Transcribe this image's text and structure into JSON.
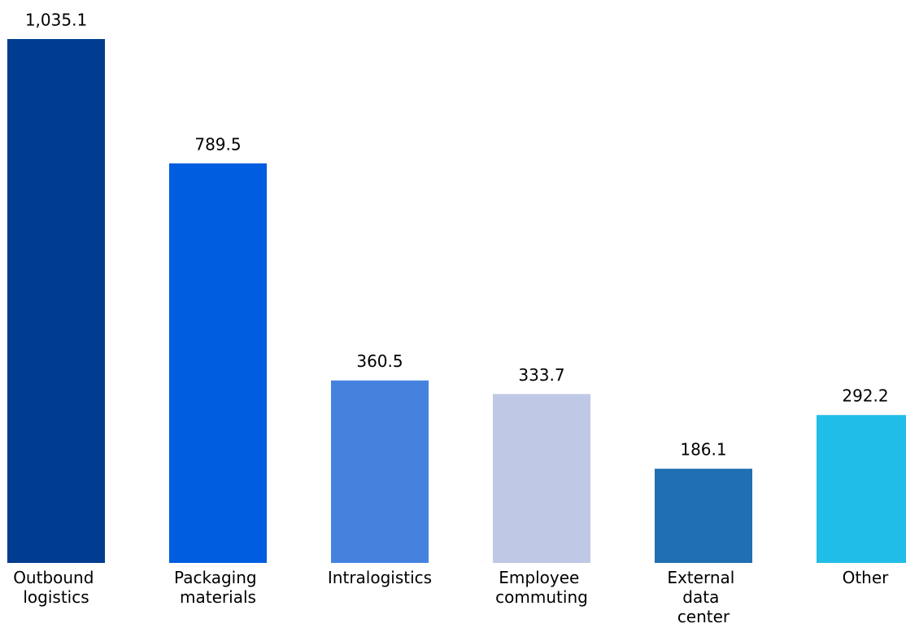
{
  "chart_data": {
    "type": "bar",
    "categories": [
      "Outbound logistics",
      "Packaging materials",
      "Intralogistics",
      "Employee commuting",
      "External data center",
      "Other"
    ],
    "values": [
      1035.1,
      789.5,
      360.5,
      333.7,
      186.1,
      292.2
    ],
    "value_labels": [
      "1,035.1",
      "789.5",
      "360.5",
      "333.7",
      "186.1",
      "292.2"
    ],
    "colors": [
      "#003c8f",
      "#005de0",
      "#4482de",
      "#bfc9e6",
      "#1f6fb2",
      "#20bde6"
    ]
  }
}
